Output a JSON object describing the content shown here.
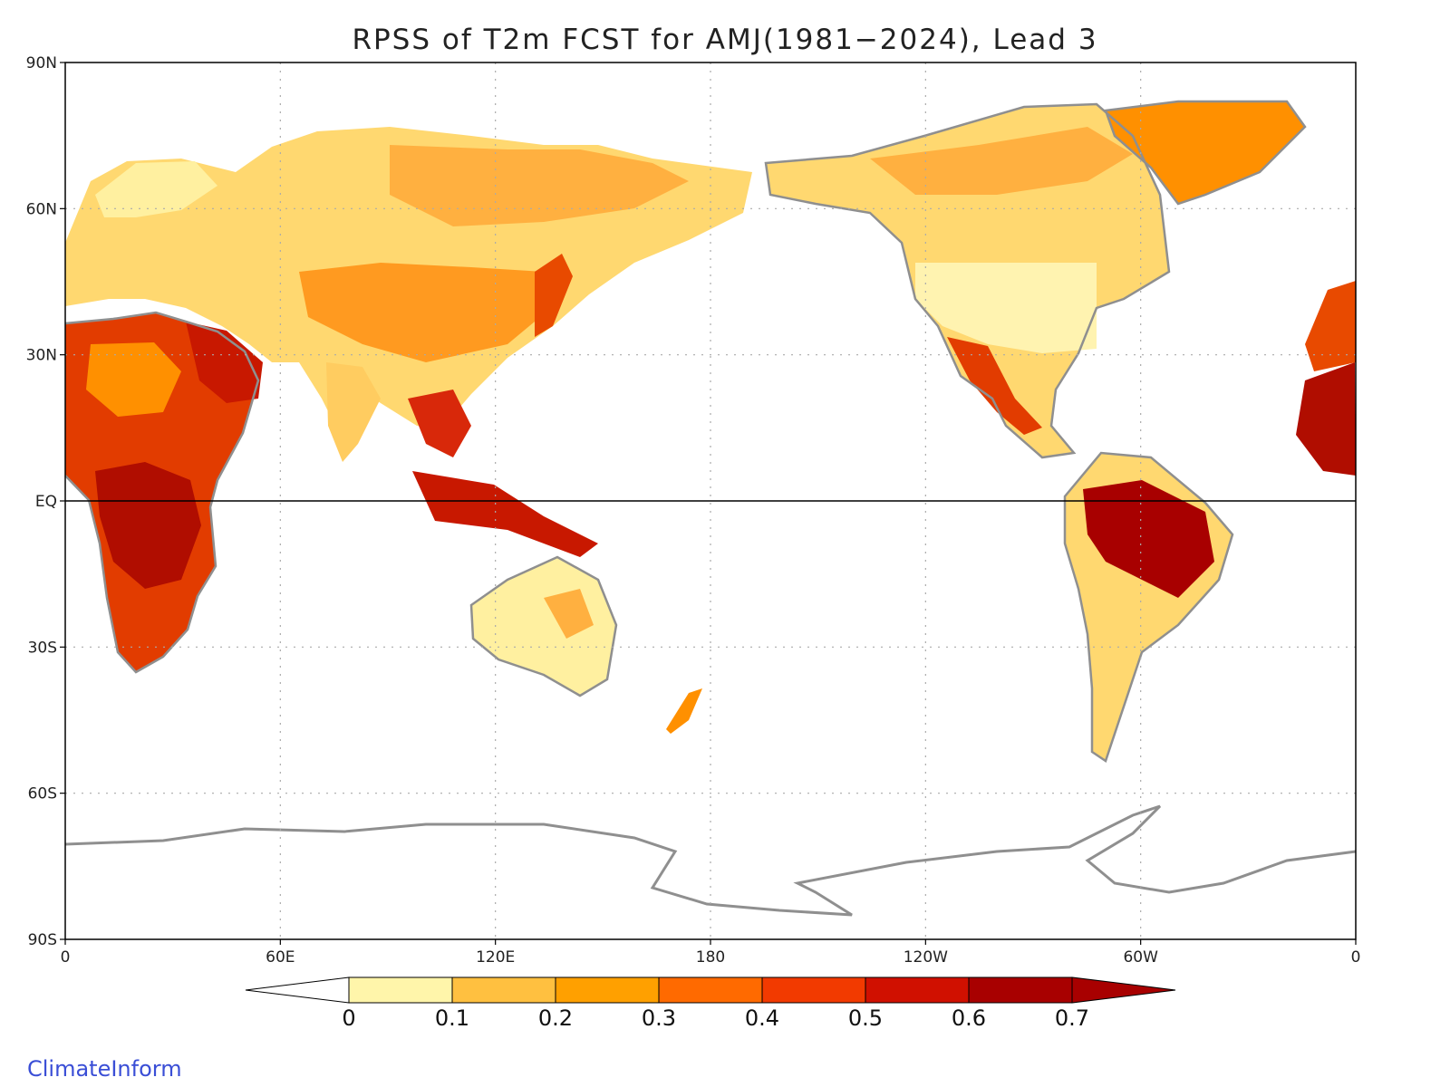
{
  "title": "RPSS of T2m FCST for AMJ(1981−2024), Lead 3",
  "credit": "ClimateInform",
  "lat_ticks": [
    "90N",
    "60N",
    "30N",
    "EQ",
    "30S",
    "60S",
    "90S"
  ],
  "lon_ticks": [
    "0",
    "60E",
    "120E",
    "180",
    "120W",
    "60W",
    "0"
  ],
  "colorbar": {
    "labels": [
      "0",
      "0.1",
      "0.2",
      "0.3",
      "0.4",
      "0.5",
      "0.6",
      "0.7"
    ],
    "colors": [
      "#ffffff",
      "#fff5aa",
      "#ffc040",
      "#ffa000",
      "#ff6a00",
      "#f23a00",
      "#d01000",
      "#a80000",
      "#a80000"
    ]
  },
  "colors": {
    "coastline": "#8f8f8f",
    "borders": "#8f8f8f",
    "us_states": "#000000",
    "grid": "#aaaaaa"
  }
}
